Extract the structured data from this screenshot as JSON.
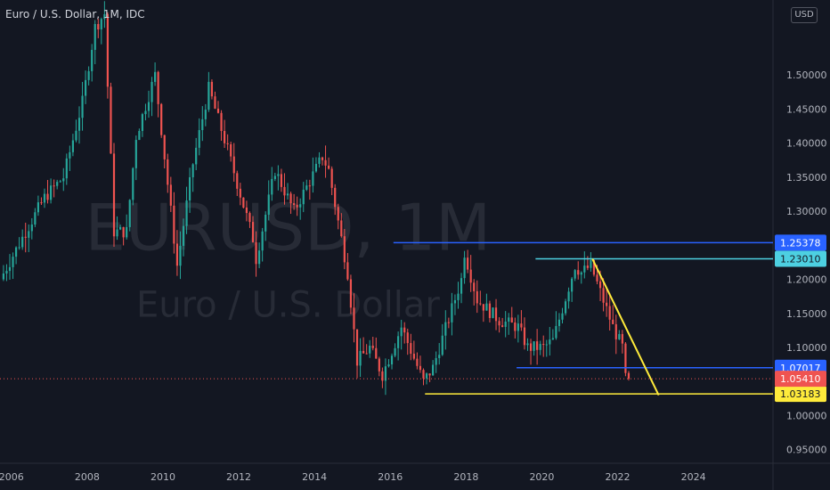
{
  "title": "Euro / U.S. Dollar, 1M, IDC",
  "unit": "USD",
  "watermark": {
    "symbol": "EURUSD, 1M",
    "name": "Euro / U.S. Dollar"
  },
  "chart_data": {
    "type": "candlestick",
    "timeframe": "1M",
    "x_ticks": [
      "2006",
      "2008",
      "2010",
      "2012",
      "2014",
      "2016",
      "2018",
      "2020",
      "2022",
      "2024"
    ],
    "y_ticks": [
      "0.95000",
      "1.00000",
      "1.05000",
      "1.10000",
      "1.15000",
      "1.20000",
      "1.25000",
      "1.30000",
      "1.35000",
      "1.40000",
      "1.45000",
      "1.50000"
    ],
    "ylim": [
      0.93,
      1.61
    ],
    "xlim": [
      2005.7,
      2026.1
    ],
    "grid": false,
    "colors": {
      "up": "#26a69a",
      "down": "#ef5350",
      "background": "#131722",
      "text": "#b2b5be",
      "wick_down": "#ef5350"
    },
    "anchors": [
      [
        "2005-10",
        1.2
      ],
      [
        "2006-06",
        1.27
      ],
      [
        "2006-12",
        1.32
      ],
      [
        "2007-06",
        1.35
      ],
      [
        "2007-12",
        1.46
      ],
      [
        "2008-04",
        1.57
      ],
      [
        "2008-07",
        1.59
      ],
      [
        "2008-10",
        1.27
      ],
      [
        "2009-02",
        1.27
      ],
      [
        "2009-05",
        1.41
      ],
      [
        "2009-11",
        1.5
      ],
      [
        "2010-06",
        1.22
      ],
      [
        "2010-11",
        1.37
      ],
      [
        "2011-04",
        1.48
      ],
      [
        "2011-10",
        1.39
      ],
      [
        "2012-06",
        1.26
      ],
      [
        "2012-07",
        1.23
      ],
      [
        "2013-01",
        1.36
      ],
      [
        "2013-07",
        1.3
      ],
      [
        "2014-04",
        1.38
      ],
      [
        "2014-06",
        1.36
      ],
      [
        "2014-12",
        1.21
      ],
      [
        "2015-03",
        1.08
      ],
      [
        "2015-07",
        1.1
      ],
      [
        "2015-11",
        1.06
      ],
      [
        "2016-05",
        1.13
      ],
      [
        "2016-12",
        1.05
      ],
      [
        "2017-03",
        1.07
      ],
      [
        "2017-12",
        1.2
      ],
      [
        "2018-01",
        1.24
      ],
      [
        "2018-05",
        1.17
      ],
      [
        "2018-12",
        1.14
      ],
      [
        "2019-06",
        1.13
      ],
      [
        "2019-09",
        1.1
      ],
      [
        "2020-02",
        1.1
      ],
      [
        "2020-05",
        1.11
      ],
      [
        "2020-12",
        1.22
      ],
      [
        "2021-02",
        1.21
      ],
      [
        "2021-05",
        1.22
      ],
      [
        "2021-12",
        1.13
      ],
      [
        "2022-03",
        1.1
      ],
      [
        "2022-04",
        1.0541
      ]
    ],
    "horizontal_levels": [
      {
        "price": 1.25378,
        "label": "1.25378",
        "color": "#2962ff",
        "from": "2016-02"
      },
      {
        "price": 1.2301,
        "label": "1.23010",
        "color": "#4dd0e1",
        "from": "2019-11"
      },
      {
        "price": 1.07017,
        "label": "1.07017",
        "color": "#2962ff",
        "from": "2019-05"
      },
      {
        "price": 1.03183,
        "label": "1.03183",
        "color": "#ffeb3b",
        "from": "2016-12"
      }
    ],
    "trend_line": {
      "from": [
        "2021-05",
        1.23
      ],
      "to": [
        "2023-02",
        1.03
      ],
      "color": "#ffeb3b"
    },
    "last_price": {
      "price": 1.0541,
      "label": "1.05410",
      "color": "#ef5350"
    }
  }
}
